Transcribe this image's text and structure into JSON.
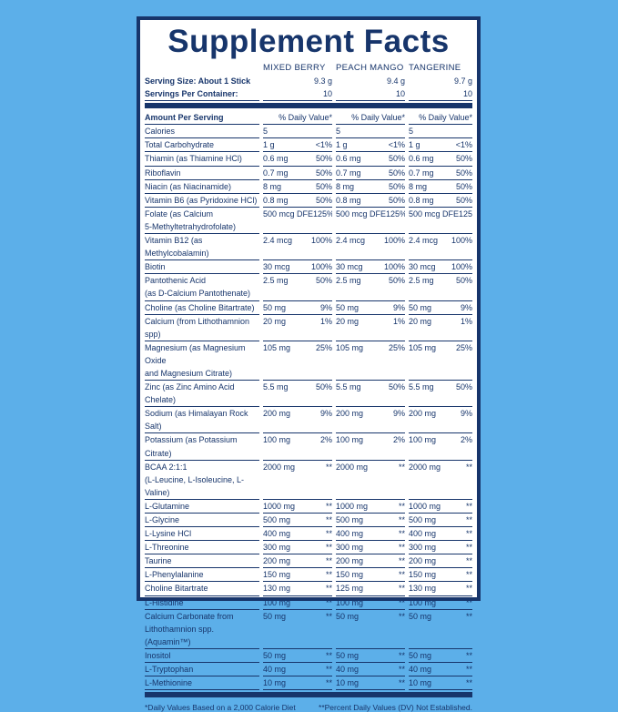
{
  "title": "Supplement Facts",
  "columns": [
    "MIXED BERRY",
    "PEACH MANGO",
    "TANGERINE"
  ],
  "serving_size": {
    "label": "Serving Size: About 1 Stick",
    "values": [
      "9.3 g",
      "9.4 g",
      "9.7 g"
    ]
  },
  "servings_per_container": {
    "label": "Servings Per Container:",
    "values": [
      "10",
      "10",
      "10"
    ]
  },
  "header": {
    "label": "Amount Per Serving",
    "dv": "% Daily Value*"
  },
  "rows": [
    {
      "name": "Calories",
      "cells": [
        [
          "5"
        ],
        [
          "5"
        ],
        [
          "5"
        ]
      ]
    },
    {
      "name": "Total Carbohydrate",
      "cells": [
        [
          "1 g",
          "<1%"
        ],
        [
          "1 g",
          "<1%"
        ],
        [
          "1 g",
          "<1%"
        ]
      ]
    },
    {
      "name": "Thiamin (as Thiamine HCl)",
      "cells": [
        [
          "0.6 mg",
          "50%"
        ],
        [
          "0.6 mg",
          "50%"
        ],
        [
          "0.6 mg",
          "50%"
        ]
      ]
    },
    {
      "name": "Riboflavin",
      "cells": [
        [
          "0.7 mg",
          "50%"
        ],
        [
          "0.7 mg",
          "50%"
        ],
        [
          "0.7 mg",
          "50%"
        ]
      ]
    },
    {
      "name": "Niacin (as Niacinamide)",
      "cells": [
        [
          "8 mg",
          "50%"
        ],
        [
          "8 mg",
          "50%"
        ],
        [
          "8 mg",
          "50%"
        ]
      ]
    },
    {
      "name": "Vitamin B6 (as Pyridoxine HCl)",
      "cells": [
        [
          "0.8 mg",
          "50%"
        ],
        [
          "0.8 mg",
          "50%"
        ],
        [
          "0.8 mg",
          "50%"
        ]
      ]
    },
    {
      "name": "Folate (as Calcium\n5-Methyltetrahydrofolate)",
      "cells": [
        [
          "500 mcg DFE",
          "125%"
        ],
        [
          "500 mcg DFE",
          "125%"
        ],
        [
          "500 mcg DFE",
          "125%"
        ]
      ]
    },
    {
      "name": "Vitamin B12 (as Methylcobalamin)",
      "cells": [
        [
          "2.4 mcg",
          "100%"
        ],
        [
          "2.4 mcg",
          "100%"
        ],
        [
          "2.4 mcg",
          "100%"
        ]
      ]
    },
    {
      "name": "Biotin",
      "cells": [
        [
          "30 mcg",
          "100%"
        ],
        [
          "30 mcg",
          "100%"
        ],
        [
          "30 mcg",
          "100%"
        ]
      ]
    },
    {
      "name": "Pantothenic Acid\n(as D-Calcium Pantothenate)",
      "cells": [
        [
          "2.5 mg",
          "50%"
        ],
        [
          "2.5 mg",
          "50%"
        ],
        [
          "2.5 mg",
          "50%"
        ]
      ]
    },
    {
      "name": "Choline (as Choline Bitartrate)",
      "cells": [
        [
          "50 mg",
          "9%"
        ],
        [
          "50 mg",
          "9%"
        ],
        [
          "50 mg",
          "9%"
        ]
      ]
    },
    {
      "name": "Calcium (from Lithothamnion spp)",
      "cells": [
        [
          "20 mg",
          "1%"
        ],
        [
          "20 mg",
          "1%"
        ],
        [
          "20 mg",
          "1%"
        ]
      ]
    },
    {
      "name": "Magnesium (as Magnesium Oxide\nand Magnesium Citrate)",
      "cells": [
        [
          "105 mg",
          "25%"
        ],
        [
          "105 mg",
          "25%"
        ],
        [
          "105 mg",
          "25%"
        ]
      ]
    },
    {
      "name": "Zinc (as Zinc Amino Acid Chelate)",
      "cells": [
        [
          "5.5 mg",
          "50%"
        ],
        [
          "5.5 mg",
          "50%"
        ],
        [
          "5.5 mg",
          "50%"
        ]
      ]
    },
    {
      "name": "Sodium (as Himalayan Rock Salt)",
      "cells": [
        [
          "200 mg",
          "9%"
        ],
        [
          "200 mg",
          "9%"
        ],
        [
          "200 mg",
          "9%"
        ]
      ]
    },
    {
      "name": "Potassium (as Potassium Citrate)",
      "cells": [
        [
          "100 mg",
          "2%"
        ],
        [
          "100 mg",
          "2%"
        ],
        [
          "100 mg",
          "2%"
        ]
      ]
    },
    {
      "name": "BCAA 2:1:1\n(L-Leucine, L-Isoleucine, L-Valine)",
      "cells": [
        [
          "2000 mg",
          "**"
        ],
        [
          "2000 mg",
          "**"
        ],
        [
          "2000 mg",
          "**"
        ]
      ]
    },
    {
      "name": "L-Glutamine",
      "cells": [
        [
          "1000 mg",
          "**"
        ],
        [
          "1000 mg",
          "**"
        ],
        [
          "1000 mg",
          "**"
        ]
      ]
    },
    {
      "name": "L-Glycine",
      "cells": [
        [
          "500 mg",
          "**"
        ],
        [
          "500 mg",
          "**"
        ],
        [
          "500 mg",
          "**"
        ]
      ]
    },
    {
      "name": "L-Lysine HCl",
      "cells": [
        [
          "400 mg",
          "**"
        ],
        [
          "400 mg",
          "**"
        ],
        [
          "400 mg",
          "**"
        ]
      ]
    },
    {
      "name": "L-Threonine",
      "cells": [
        [
          "300 mg",
          "**"
        ],
        [
          "300 mg",
          "**"
        ],
        [
          "300 mg",
          "**"
        ]
      ]
    },
    {
      "name": "Taurine",
      "cells": [
        [
          "200 mg",
          "**"
        ],
        [
          "200 mg",
          "**"
        ],
        [
          "200 mg",
          "**"
        ]
      ]
    },
    {
      "name": "L-Phenylalanine",
      "cells": [
        [
          "150 mg",
          "**"
        ],
        [
          "150 mg",
          "**"
        ],
        [
          "150 mg",
          "**"
        ]
      ]
    },
    {
      "name": "Choline Bitartrate",
      "cells": [
        [
          "130 mg",
          "**"
        ],
        [
          "125 mg",
          "**"
        ],
        [
          "130 mg",
          "**"
        ]
      ]
    },
    {
      "name": "L-Histidine",
      "cells": [
        [
          "100 mg",
          "**"
        ],
        [
          "100 mg",
          "**"
        ],
        [
          "100 mg",
          "**"
        ]
      ]
    },
    {
      "name": "Calcium Carbonate from\nLithothamnion spp. (Aquamin™)",
      "cells": [
        [
          "50 mg",
          "**"
        ],
        [
          "50 mg",
          "**"
        ],
        [
          "50 mg",
          "**"
        ]
      ]
    },
    {
      "name": "Inositol",
      "cells": [
        [
          "50 mg",
          "**"
        ],
        [
          "50 mg",
          "**"
        ],
        [
          "50 mg",
          "**"
        ]
      ]
    },
    {
      "name": "L-Tryptophan",
      "cells": [
        [
          "40 mg",
          "**"
        ],
        [
          "40 mg",
          "**"
        ],
        [
          "40 mg",
          "**"
        ]
      ]
    },
    {
      "name": "L-Methionine",
      "cells": [
        [
          "10 mg",
          "**"
        ],
        [
          "10 mg",
          "**"
        ],
        [
          "10 mg",
          "**"
        ]
      ]
    }
  ],
  "footer": {
    "left": "*Daily Values Based on a 2,000 Calorie Diet",
    "right": "**Percent Daily Values (DV) Not Established."
  }
}
